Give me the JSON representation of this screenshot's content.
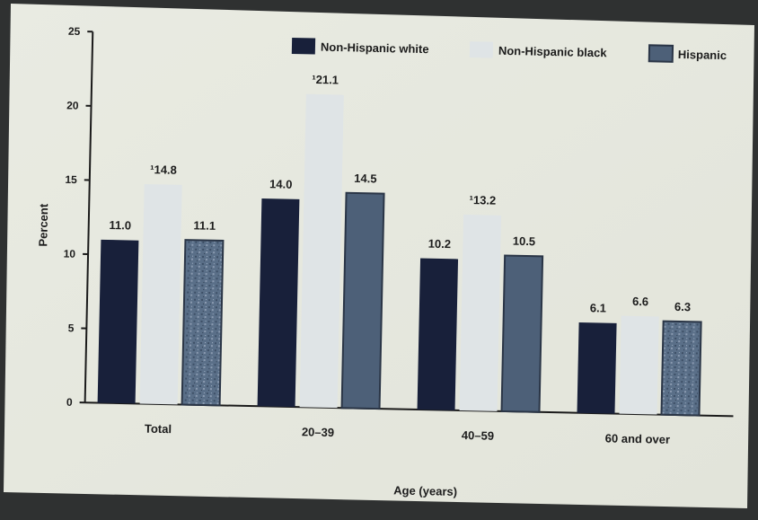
{
  "chart_data": {
    "type": "bar",
    "title": "",
    "xlabel": "Age (years)",
    "ylabel": "Percent",
    "ylim": [
      0,
      25
    ],
    "yticks": [
      0,
      5,
      10,
      15,
      20,
      25
    ],
    "categories": [
      "Total",
      "20–39",
      "40–59",
      "60 and over"
    ],
    "series": [
      {
        "name": "Non-Hispanic white",
        "color": "#18203a",
        "values": [
          11.0,
          14.0,
          10.2,
          6.1
        ],
        "labels": [
          "11.0",
          "14.0",
          "10.2",
          "6.1"
        ]
      },
      {
        "name": "Non-Hispanic black",
        "color": "#dfe4e6",
        "values": [
          14.8,
          21.1,
          13.2,
          6.6
        ],
        "labels": [
          "¹14.8",
          "¹21.1",
          "¹13.2",
          "6.6"
        ]
      },
      {
        "name": "Hispanic",
        "color": "#4d6078",
        "values": [
          11.1,
          14.5,
          10.5,
          6.3
        ],
        "labels": [
          "11.1",
          "14.5",
          "10.5",
          "6.3"
        ]
      }
    ],
    "legend_position": "top-right",
    "grid": false
  }
}
